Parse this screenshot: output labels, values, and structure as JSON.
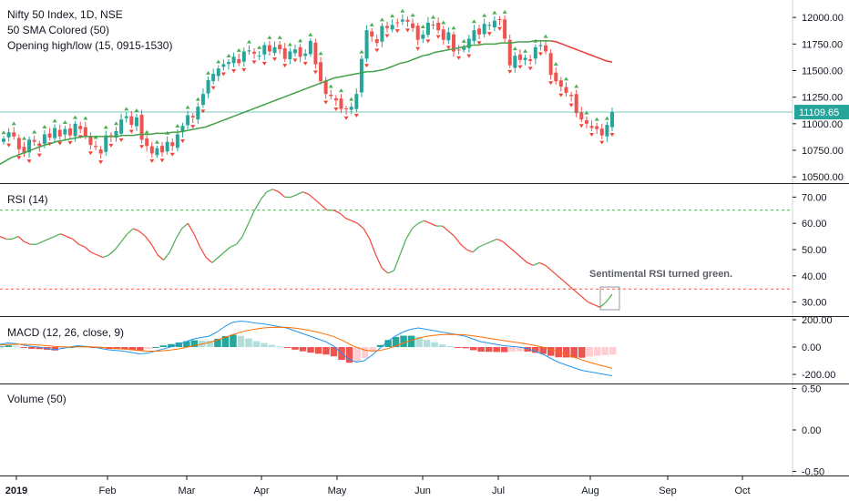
{
  "chart_data": {
    "type": "line",
    "panes": {
      "price": {
        "title": "Nifty 50 Index, 1D, NSE",
        "indicators": [
          "50 SMA Colored (50)",
          "Opening high/low (15, 0915-1530)"
        ],
        "y_ticks": [
          "12000.00",
          "11750.00",
          "11500.00",
          "11250.00",
          "11000.00",
          "10750.00",
          "10500.00"
        ],
        "ylim": [
          10450,
          12130
        ],
        "last_price_label": "11109.65",
        "last_price": 11109.65,
        "close": [
          10860,
          10920,
          10880,
          10760,
          10720,
          10850,
          10830,
          10790,
          10900,
          10870,
          10960,
          10880,
          10950,
          10890,
          11000,
          10950,
          10880,
          10800,
          10780,
          10720,
          10890,
          10880,
          10930,
          11040,
          11070,
          10990,
          11060,
          10850,
          10790,
          10720,
          10770,
          10730,
          10830,
          10790,
          10900,
          10980,
          11080,
          11060,
          11160,
          11280,
          11410,
          11470,
          11520,
          11560,
          11580,
          11630,
          11570,
          11680,
          11690,
          11660,
          11640,
          11740,
          11680,
          11720,
          11700,
          11610,
          11680,
          11700,
          11630,
          11660,
          11780,
          11560,
          11400,
          11280,
          11260,
          11220,
          11140,
          11140,
          11160,
          11280,
          11610,
          11880,
          11820,
          11760,
          11920,
          11900,
          11930,
          11950,
          11980,
          11960,
          11900,
          11790,
          11840,
          11950,
          11930,
          11880,
          11790,
          11860,
          11680,
          11690,
          11720,
          11800,
          11880,
          11840,
          11940,
          11930,
          11970,
          11980,
          11800,
          11550,
          11640,
          11600,
          11620,
          11590,
          11720,
          11740,
          11680,
          11460,
          11400,
          11350,
          11290,
          11260,
          11100,
          11040,
          11000,
          10960,
          10950,
          10890,
          10990,
          11110
        ],
        "sma50": [
          10620,
          10650,
          10680,
          10700,
          10720,
          10740,
          10760,
          10780,
          10800,
          10810,
          10830,
          10840,
          10850,
          10860,
          10870,
          10880,
          10880,
          10880,
          10880,
          10880,
          10880,
          10880,
          10890,
          10890,
          10890,
          10900,
          10900,
          10900,
          10910,
          10910,
          10910,
          10920,
          10920,
          10930,
          10940,
          10950,
          10960,
          10970,
          10990,
          11010,
          11030,
          11050,
          11070,
          11090,
          11110,
          11130,
          11150,
          11170,
          11190,
          11210,
          11230,
          11250,
          11270,
          11290,
          11310,
          11330,
          11350,
          11370,
          11390,
          11410,
          11430,
          11440,
          11450,
          11460,
          11470,
          11480,
          11490,
          11490,
          11500,
          11510,
          11530,
          11550,
          11570,
          11580,
          11600,
          11620,
          11640,
          11650,
          11670,
          11680,
          11690,
          11700,
          11710,
          11720,
          11730,
          11740,
          11740,
          11750,
          11750,
          11750,
          11760,
          11760,
          11760,
          11770,
          11770,
          11770,
          11780,
          11780,
          11780,
          11780,
          11770,
          11750,
          11730,
          11710,
          11690,
          11670,
          11650,
          11630,
          11610,
          11590,
          11580
        ],
        "sma50_colors": [
          "#43a047",
          "#e53935"
        ]
      },
      "rsi": {
        "title": "RSI (14)",
        "y_ticks": [
          "70.00",
          "60.00",
          "50.00",
          "40.00",
          "30.00"
        ],
        "ylim": [
          25,
          75
        ],
        "upper_band": 65,
        "lower_band": 35,
        "values": [
          55,
          54,
          54,
          55,
          53,
          52,
          52,
          53,
          54,
          55,
          56,
          55,
          54,
          52,
          51,
          49,
          48,
          47,
          48,
          50,
          53,
          56,
          58,
          57,
          55,
          52,
          48,
          46,
          49,
          54,
          58,
          60,
          56,
          51,
          47,
          45,
          47,
          49,
          51,
          52,
          55,
          60,
          65,
          69,
          72,
          73,
          72,
          70,
          70,
          71,
          72,
          71,
          69,
          67,
          65,
          65,
          64,
          62,
          61,
          60,
          58,
          54,
          48,
          43,
          41,
          42,
          48,
          54,
          58,
          60,
          61,
          60,
          59,
          59,
          57,
          55,
          52,
          50,
          49,
          51,
          52,
          53,
          54,
          53,
          51,
          49,
          47,
          45,
          44,
          45,
          44,
          42,
          40,
          38,
          36,
          34,
          32,
          30,
          29,
          28,
          30,
          33
        ],
        "annotation": "Sentimental RSI turned green."
      },
      "macd": {
        "title": "MACD (12, 26, close, 9)",
        "y_ticks": [
          "200.00",
          "0.00",
          "-200.00"
        ],
        "ylim": [
          -260,
          220
        ],
        "macd": [
          20,
          30,
          25,
          15,
          5,
          0,
          -10,
          -20,
          -10,
          0,
          10,
          5,
          0,
          -10,
          -20,
          -25,
          -30,
          -40,
          -50,
          -45,
          -30,
          -15,
          0,
          20,
          40,
          60,
          70,
          80,
          110,
          150,
          180,
          190,
          185,
          175,
          170,
          160,
          150,
          140,
          120,
          100,
          80,
          60,
          40,
          10,
          -40,
          -90,
          -110,
          -100,
          -60,
          -10,
          40,
          80,
          110,
          130,
          140,
          130,
          120,
          110,
          100,
          90,
          80,
          60,
          40,
          30,
          20,
          10,
          5,
          0,
          -10,
          -30,
          -50,
          -80,
          -110,
          -130,
          -150,
          -170,
          -180,
          -190,
          -200,
          -210
        ],
        "signal": [
          15,
          18,
          20,
          20,
          18,
          15,
          10,
          5,
          2,
          0,
          1,
          2,
          1,
          -2,
          -6,
          -10,
          -15,
          -20,
          -26,
          -30,
          -30,
          -27,
          -22,
          -14,
          -3,
          10,
          22,
          34,
          50,
          70,
          90,
          108,
          122,
          132,
          140,
          144,
          145,
          144,
          139,
          131,
          121,
          109,
          95,
          78,
          54,
          25,
          -2,
          -21,
          -29,
          -25,
          -12,
          6,
          27,
          47,
          65,
          78,
          86,
          91,
          93,
          92,
          89,
          83,
          74,
          65,
          56,
          47,
          39,
          31,
          23,
          12,
          0,
          -16,
          -35,
          -54,
          -73,
          -92,
          -110,
          -126,
          -141,
          -155
        ],
        "histogram_colors": [
          "#26a69a",
          "#b2dfdb",
          "#ef5350",
          "#ffcdd2"
        ],
        "line_colors": [
          "#2196f3",
          "#ff6d00"
        ]
      },
      "volume": {
        "title": "Volume (50)",
        "y_ticks": [
          "0.50",
          "0.00",
          "-0.50"
        ],
        "ylim": [
          -0.55,
          0.55
        ]
      }
    },
    "x_ticks": [
      "2019",
      "Feb",
      "Mar",
      "Apr",
      "May",
      "Jun",
      "Jul",
      "Aug",
      "Sep",
      "Oct"
    ],
    "colors": {
      "up": "#26a69a",
      "down": "#ef5350",
      "marker_up": "#4caf50",
      "marker_down": "#f44336"
    }
  }
}
